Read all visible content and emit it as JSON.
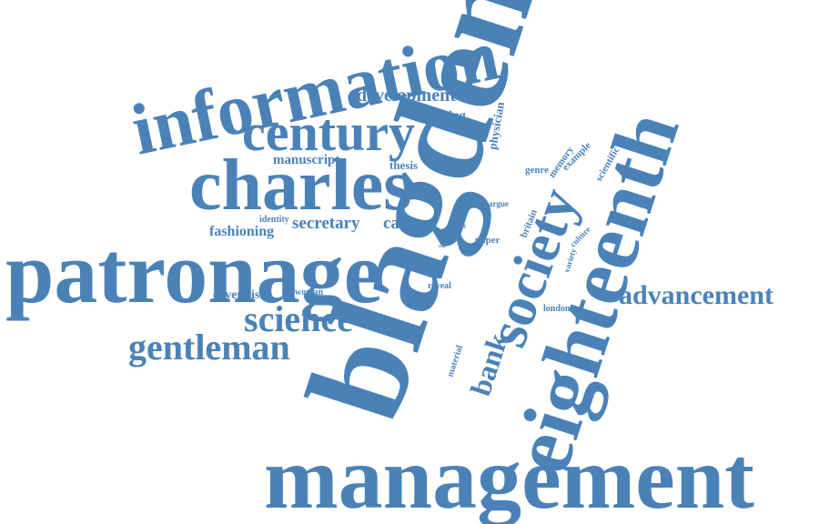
{
  "cloud": {
    "color": "#4a82b8",
    "words": [
      {
        "id": "blagden",
        "text": "blagden"
      },
      {
        "id": "eighteenth",
        "text": "eighteenth"
      },
      {
        "id": "management",
        "text": "management"
      },
      {
        "id": "patronage",
        "text": "patronage"
      },
      {
        "id": "information",
        "text": "information"
      },
      {
        "id": "charles",
        "text": "charles"
      },
      {
        "id": "century",
        "text": "century"
      },
      {
        "id": "society",
        "text": "society"
      },
      {
        "id": "science",
        "text": "science"
      },
      {
        "id": "gentleman",
        "text": "gentleman"
      },
      {
        "id": "advancement",
        "text": "advancement"
      },
      {
        "id": "bank",
        "text": "bank"
      },
      {
        "id": "development",
        "text": "development"
      },
      {
        "id": "exploring",
        "text": "exploring"
      },
      {
        "id": "manuscript",
        "text": "manuscript"
      },
      {
        "id": "thesis",
        "text": "thesis"
      },
      {
        "id": "secretary",
        "text": "secretary"
      },
      {
        "id": "career",
        "text": "career"
      },
      {
        "id": "fashioning",
        "text": "fashioning"
      },
      {
        "id": "identity",
        "text": "identity"
      },
      {
        "id": "cavendish",
        "text": "cavendish"
      },
      {
        "id": "woman",
        "text": "woman"
      },
      {
        "id": "physician",
        "text": "physician"
      },
      {
        "id": "genre",
        "text": "genre"
      },
      {
        "id": "memory",
        "text": "memory"
      },
      {
        "id": "britain",
        "text": "britain"
      },
      {
        "id": "example",
        "text": "example"
      },
      {
        "id": "scientific",
        "text": "scientific"
      },
      {
        "id": "argue",
        "text": "argue"
      },
      {
        "id": "tool",
        "text": "tool"
      },
      {
        "id": "paper",
        "text": "paper"
      },
      {
        "id": "role",
        "text": "role"
      },
      {
        "id": "variety",
        "text": "variety"
      },
      {
        "id": "culture",
        "text": "culture"
      },
      {
        "id": "reveal",
        "text": "reveal"
      },
      {
        "id": "london",
        "text": "london"
      },
      {
        "id": "material",
        "text": "material"
      }
    ]
  }
}
